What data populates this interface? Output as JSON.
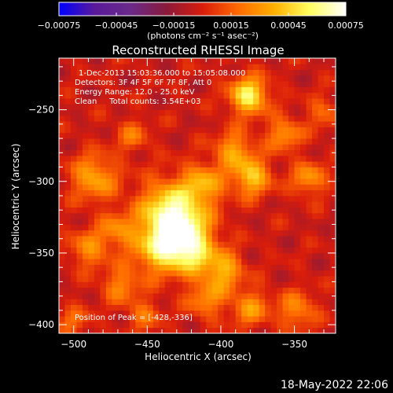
{
  "chart_data": {
    "type": "heatmap",
    "title": "Reconstructed RHESSI Image",
    "xlabel": "Heliocentric X (arcsec)",
    "ylabel": "Heliocentric Y (arcsec)",
    "xlim": [
      -510,
      -322
    ],
    "ylim": [
      -406,
      -214
    ],
    "x_ticks": [
      {
        "value": -500,
        "label": "−500"
      },
      {
        "value": -450,
        "label": "−450"
      },
      {
        "value": -400,
        "label": "−400"
      },
      {
        "value": -350,
        "label": "−350"
      }
    ],
    "y_ticks": [
      {
        "value": -250,
        "label": "−250"
      },
      {
        "value": -300,
        "label": "−300"
      },
      {
        "value": -350,
        "label": "−350"
      },
      {
        "value": -400,
        "label": "−400"
      }
    ],
    "colorbar": {
      "min": -0.00075,
      "max": 0.00075,
      "ticks": [
        {
          "value": -0.00075,
          "label": "−0.00075"
        },
        {
          "value": -0.00045,
          "label": "−0.00045"
        },
        {
          "value": -0.00015,
          "label": "−0.00015"
        },
        {
          "value": 0.00015,
          "label": "0.00015"
        },
        {
          "value": 0.00045,
          "label": "0.00045"
        },
        {
          "value": 0.00075,
          "label": "0.00075"
        }
      ],
      "units": "(photons cm⁻² s⁻¹ asec⁻²)",
      "colormap": [
        "#0000ff",
        "#5a1a9a",
        "#6a2a8a",
        "#8a1a3a",
        "#d81c0c",
        "#ff6a00",
        "#ffb000",
        "#ffff60",
        "#ffffff"
      ]
    },
    "annotations": [
      "1-Dec-2013 15:03:36.000 to 15:05:08.000",
      "Detectors: 3F 4F 5F 6F 7F 8F, Att 0",
      "Energy Range: 12.0 - 25.0 keV",
      "Clean     Total counts: 3.54E+03"
    ],
    "peak_label": "Position of Peak = [-428,-336]",
    "peak": [
      -428,
      -336
    ],
    "emission_sources": [
      {
        "x": -428,
        "y": -336,
        "amplitude": 0.00072,
        "radius": 14
      },
      {
        "x": -436,
        "y": -318,
        "amplitude": 0.00044,
        "radius": 14
      },
      {
        "x": -412,
        "y": -302,
        "amplitude": 0.00038,
        "radius": 10
      },
      {
        "x": -443,
        "y": -349,
        "amplitude": 0.00034,
        "radius": 12
      },
      {
        "x": -418,
        "y": -352,
        "amplitude": 0.0003,
        "radius": 10
      },
      {
        "x": -381,
        "y": -240,
        "amplitude": 0.0006,
        "radius": 9
      },
      {
        "x": -379,
        "y": -297,
        "amplitude": 0.00046,
        "radius": 9
      },
      {
        "x": -391,
        "y": -278,
        "amplitude": 0.00036,
        "radius": 9
      },
      {
        "x": -357,
        "y": -267,
        "amplitude": 0.00034,
        "radius": 8
      },
      {
        "x": -340,
        "y": -298,
        "amplitude": 0.00034,
        "radius": 8
      },
      {
        "x": -486,
        "y": -297,
        "amplitude": 0.00038,
        "radius": 11
      },
      {
        "x": -490,
        "y": -347,
        "amplitude": 0.0003,
        "radius": 9
      },
      {
        "x": -470,
        "y": -334,
        "amplitude": 0.00028,
        "radius": 9
      },
      {
        "x": -468,
        "y": -372,
        "amplitude": 0.00028,
        "radius": 9
      },
      {
        "x": -398,
        "y": -362,
        "amplitude": 0.0004,
        "radius": 9
      },
      {
        "x": -380,
        "y": -388,
        "amplitude": 0.00032,
        "radius": 9
      },
      {
        "x": -410,
        "y": -382,
        "amplitude": 0.0003,
        "radius": 9
      },
      {
        "x": -348,
        "y": -390,
        "amplitude": 0.0003,
        "radius": 9
      },
      {
        "x": -460,
        "y": -268,
        "amplitude": 0.00022,
        "radius": 8
      },
      {
        "x": -452,
        "y": -393,
        "amplitude": 0.00022,
        "radius": 8
      },
      {
        "x": -500,
        "y": -398,
        "amplitude": 0.0002,
        "radius": 8
      },
      {
        "x": -330,
        "y": -252,
        "amplitude": 0.0002,
        "radius": 8
      }
    ]
  },
  "timestamp": "18-May-2022 22:06"
}
